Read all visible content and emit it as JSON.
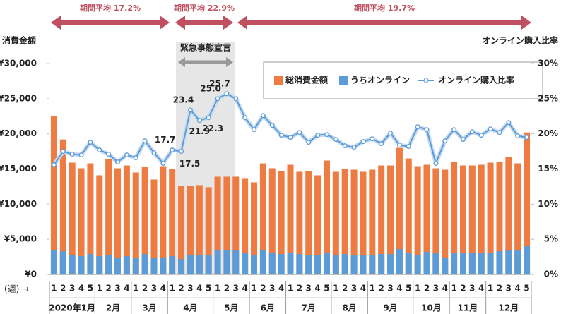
{
  "chart_data": {
    "type": "bar-line",
    "annotations": [
      "期間平均 17.2%",
      "期間平均 22.9%",
      "期間平均 19.7%"
    ],
    "shaded_label": "緊急事態宣言",
    "y_title": "消費金額",
    "y2_title": "オンライン購入比率",
    "x_title": "(週) →",
    "categories": [
      "1",
      "2",
      "3",
      "4",
      "5",
      "1",
      "2",
      "3",
      "4",
      "1",
      "2",
      "3",
      "4",
      "1",
      "2",
      "3",
      "4",
      "5",
      "1",
      "2",
      "3",
      "4",
      "1",
      "2",
      "3",
      "4",
      "1",
      "2",
      "3",
      "4",
      "5",
      "1",
      "2",
      "3",
      "4",
      "1",
      "2",
      "3",
      "4",
      "5",
      "1",
      "2",
      "3",
      "4",
      "1",
      "2",
      "3",
      "4",
      "1",
      "2",
      "3",
      "4",
      "5"
    ],
    "month_labels": [
      "2020年1月",
      null,
      null,
      null,
      null,
      "2月",
      null,
      null,
      null,
      "3月",
      null,
      null,
      null,
      "4月",
      null,
      null,
      null,
      null,
      "5月",
      null,
      null,
      null,
      "6月",
      null,
      null,
      null,
      "7月",
      null,
      null,
      null,
      null,
      "8月",
      null,
      null,
      null,
      "9月",
      null,
      null,
      null,
      null,
      "10月",
      null,
      null,
      null,
      "11月",
      null,
      null,
      null,
      "12月",
      null,
      null,
      null,
      null
    ],
    "ylim": [
      0,
      30000
    ],
    "yticks": [
      {
        "value": 0,
        "label": "¥0"
      },
      {
        "value": 5000,
        "label": "¥5,000"
      },
      {
        "value": 10000,
        "label": "¥10,000"
      },
      {
        "value": 15000,
        "label": "¥15,000"
      },
      {
        "value": 20000,
        "label": "¥20,000"
      },
      {
        "value": 25000,
        "label": "¥25,000"
      },
      {
        "value": 30000,
        "label": "¥30,000"
      }
    ],
    "y2lim": [
      0,
      30
    ],
    "y2ticks": [
      {
        "value": 0,
        "label": "0%"
      },
      {
        "value": 5,
        "label": "5%"
      },
      {
        "value": 10,
        "label": "10%"
      },
      {
        "value": 15,
        "label": "15%"
      },
      {
        "value": 20,
        "label": "20%"
      },
      {
        "value": 25,
        "label": "25%"
      },
      {
        "value": 30,
        "label": "30%"
      }
    ],
    "series": [
      {
        "name": "総消費金額",
        "color": "#ee7b42",
        "kind": "bar",
        "values": [
          22500,
          19200,
          15900,
          15100,
          15800,
          14100,
          16400,
          15100,
          15500,
          14500,
          15300,
          13500,
          15400,
          15000,
          12600,
          12600,
          12700,
          12400,
          13900,
          13900,
          13900,
          13700,
          13100,
          15800,
          15100,
          14700,
          15600,
          14600,
          14700,
          14100,
          16200,
          14600,
          15000,
          14900,
          14600,
          14900,
          15500,
          15500,
          18000,
          16500,
          15400,
          15600,
          15100,
          14900,
          16000,
          15500,
          15500,
          15600,
          15900,
          16000,
          16700,
          15800,
          20200
        ]
      },
      {
        "name": "うちオンライン",
        "color": "#5a9bd8",
        "kind": "bar",
        "values": [
          3500,
          3300,
          2700,
          2600,
          2900,
          2600,
          2800,
          2400,
          2600,
          2400,
          2900,
          2400,
          2400,
          2600,
          2200,
          2800,
          2800,
          2700,
          3400,
          3500,
          3400,
          3000,
          2700,
          3500,
          3100,
          2900,
          3100,
          2900,
          2800,
          2800,
          3100,
          2800,
          2900,
          2700,
          2700,
          2800,
          2900,
          2900,
          3600,
          3000,
          2800,
          3200,
          3000,
          2400,
          3000,
          3100,
          3100,
          3100,
          3000,
          3300,
          3400,
          3400,
          4000
        ]
      },
      {
        "name": "オンライン購入比率",
        "color": "#5a9bd8",
        "kind": "line",
        "axis": "y2",
        "values": [
          15.6,
          17.5,
          17.1,
          17.0,
          18.8,
          17.7,
          17.1,
          16.0,
          17.0,
          16.6,
          19.0,
          17.3,
          15.8,
          17.7,
          17.5,
          23.4,
          21.9,
          22.3,
          25.0,
          25.7,
          25.0,
          22.3,
          20.6,
          22.6,
          21.2,
          19.8,
          19.5,
          20.2,
          18.8,
          19.8,
          19.9,
          19.2,
          18.3,
          18.1,
          18.9,
          19.3,
          18.6,
          20.1,
          18.4,
          18.2,
          21.0,
          20.6,
          15.8,
          19.0,
          20.6,
          19.2,
          20.3,
          19.8,
          20.7,
          20.2,
          21.6,
          19.7,
          19.5
        ],
        "value_labels": [
          null,
          null,
          null,
          null,
          null,
          null,
          null,
          null,
          null,
          null,
          null,
          null,
          null,
          "17.7",
          "17.5",
          "23.4",
          "21.9",
          "22.3",
          "25.0",
          "25.7",
          null,
          null,
          null,
          null,
          null,
          null,
          null,
          null,
          null,
          null,
          null,
          null,
          null,
          null,
          null,
          null,
          null,
          null,
          null,
          null,
          null,
          null,
          null,
          null,
          null,
          null,
          null,
          null,
          null,
          null,
          null,
          null,
          null
        ]
      }
    ]
  }
}
